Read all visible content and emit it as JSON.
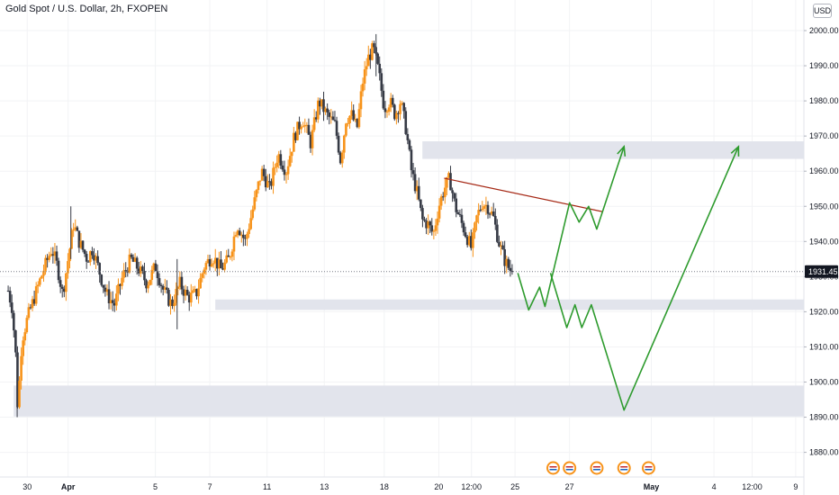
{
  "header": {
    "title": "Gold Spot / U.S. Dollar, 2h, FXOPEN",
    "currency": "USD"
  },
  "chart_data": {
    "type": "candlestick",
    "symbol": "Gold Spot / U.S. Dollar",
    "interval": "2h",
    "exchange": "FXOPEN",
    "currency": "USD",
    "last_price": 1931.45,
    "last_price_label": "1931.45",
    "ylim": [
      1875,
      2008
    ],
    "y_ticks": [
      {
        "label": "2000.00",
        "value": 2000
      },
      {
        "label": "1990.00",
        "value": 1990
      },
      {
        "label": "1980.00",
        "value": 1980
      },
      {
        "label": "1970.00",
        "value": 1970
      },
      {
        "label": "1960.00",
        "value": 1960
      },
      {
        "label": "1950.00",
        "value": 1950
      },
      {
        "label": "1940.00",
        "value": 1940
      },
      {
        "label": "1930.00",
        "value": 1930
      },
      {
        "label": "1920.00",
        "value": 1920
      },
      {
        "label": "1910.00",
        "value": 1910
      },
      {
        "label": "1900.00",
        "value": 1900
      },
      {
        "label": "1890.00",
        "value": 1890
      },
      {
        "label": "1880.00",
        "value": 1880
      }
    ],
    "x_ticks": [
      {
        "label": "30",
        "t": 0.7,
        "bold": false
      },
      {
        "label": "Apr",
        "t": 2.2,
        "bold": true
      },
      {
        "label": "5",
        "t": 5.4,
        "bold": false
      },
      {
        "label": "7",
        "t": 7.4,
        "bold": false
      },
      {
        "label": "11",
        "t": 9.5,
        "bold": false
      },
      {
        "label": "13",
        "t": 11.6,
        "bold": false
      },
      {
        "label": "18",
        "t": 13.8,
        "bold": false
      },
      {
        "label": "20",
        "t": 15.8,
        "bold": false
      },
      {
        "label": "12:00",
        "t": 17.0,
        "bold": false
      },
      {
        "label": "25",
        "t": 18.6,
        "bold": false
      },
      {
        "label": "27",
        "t": 20.6,
        "bold": false
      },
      {
        "label": "May",
        "t": 23.6,
        "bold": true
      },
      {
        "label": "4",
        "t": 25.9,
        "bold": false
      },
      {
        "label": "12:00",
        "t": 27.3,
        "bold": false
      },
      {
        "label": "9",
        "t": 28.9,
        "bold": false
      }
    ],
    "x_range": [
      -0.3,
      29.2
    ],
    "price_path": [
      [
        0.0,
        1926
      ],
      [
        0.15,
        1921
      ],
      [
        0.3,
        1905
      ],
      [
        0.35,
        1892
      ],
      [
        0.5,
        1912
      ],
      [
        0.7,
        1918
      ],
      [
        1.0,
        1925
      ],
      [
        1.3,
        1932
      ],
      [
        1.6,
        1938
      ],
      [
        1.8,
        1933
      ],
      [
        2.0,
        1925
      ],
      [
        2.2,
        1935
      ],
      [
        2.4,
        1945
      ],
      [
        2.6,
        1940
      ],
      [
        2.9,
        1935
      ],
      [
        3.1,
        1938
      ],
      [
        3.4,
        1930
      ],
      [
        3.6,
        1925
      ],
      [
        3.9,
        1922
      ],
      [
        4.2,
        1930
      ],
      [
        4.5,
        1935
      ],
      [
        4.8,
        1932
      ],
      [
        5.1,
        1928
      ],
      [
        5.4,
        1933
      ],
      [
        5.7,
        1926
      ],
      [
        6.0,
        1922
      ],
      [
        6.3,
        1928
      ],
      [
        6.6,
        1924
      ],
      [
        6.9,
        1925
      ],
      [
        7.2,
        1933
      ],
      [
        7.5,
        1936
      ],
      [
        7.8,
        1932
      ],
      [
        8.1,
        1935
      ],
      [
        8.4,
        1945
      ],
      [
        8.7,
        1940
      ],
      [
        9.0,
        1950
      ],
      [
        9.3,
        1960
      ],
      [
        9.6,
        1955
      ],
      [
        9.9,
        1965
      ],
      [
        10.2,
        1960
      ],
      [
        10.5,
        1970
      ],
      [
        10.8,
        1975
      ],
      [
        11.1,
        1968
      ],
      [
        11.4,
        1980
      ],
      [
        11.7,
        1976
      ],
      [
        12.0,
        1973
      ],
      [
        12.2,
        1963
      ],
      [
        12.4,
        1975
      ],
      [
        12.6,
        1976
      ],
      [
        12.8,
        1972
      ],
      [
        13.0,
        1985
      ],
      [
        13.2,
        1992
      ],
      [
        13.4,
        1995
      ],
      [
        13.6,
        1988
      ],
      [
        13.8,
        1978
      ],
      [
        14.0,
        1980
      ],
      [
        14.2,
        1976
      ],
      [
        14.4,
        1980
      ],
      [
        14.6,
        1972
      ],
      [
        14.8,
        1960
      ],
      [
        15.0,
        1954
      ],
      [
        15.2,
        1946
      ],
      [
        15.4,
        1945
      ],
      [
        15.6,
        1942
      ],
      [
        15.8,
        1950
      ],
      [
        16.0,
        1955
      ],
      [
        16.2,
        1958
      ],
      [
        16.4,
        1950
      ],
      [
        16.6,
        1946
      ],
      [
        16.8,
        1942
      ],
      [
        17.0,
        1938
      ],
      [
        17.2,
        1947
      ],
      [
        17.4,
        1951
      ],
      [
        17.6,
        1950
      ],
      [
        17.8,
        1947
      ],
      [
        18.0,
        1940
      ],
      [
        18.2,
        1935
      ],
      [
        18.4,
        1932
      ],
      [
        18.55,
        1931.45
      ]
    ],
    "support_zones": [
      {
        "name": "upper-resistance-zone",
        "low": 1963.5,
        "high": 1968.5,
        "t_start": 15.2
      },
      {
        "name": "middle-support-zone",
        "low": 1920.5,
        "high": 1923.5,
        "t_start": 7.6
      },
      {
        "name": "lower-support-zone",
        "low": 1890.2,
        "high": 1899.0,
        "t_start": 0.2
      }
    ],
    "trendline": {
      "points": [
        [
          16.0,
          1958
        ],
        [
          21.8,
          1948.5
        ]
      ],
      "color": "#a52714"
    },
    "projection_paths": [
      {
        "name": "bullish-scenario-path",
        "color": "#2e9b2e",
        "points": [
          [
            18.7,
            1931
          ],
          [
            19.1,
            1920.5
          ],
          [
            19.5,
            1927
          ],
          [
            19.7,
            1921.5
          ],
          [
            20.6,
            1951
          ],
          [
            20.95,
            1945.5
          ],
          [
            21.3,
            1950
          ],
          [
            21.6,
            1943.5
          ],
          [
            22.6,
            1967
          ]
        ]
      },
      {
        "name": "bearish-scenario-path",
        "color": "#2e9b2e",
        "points": [
          [
            19.9,
            1931
          ],
          [
            20.5,
            1915.5
          ],
          [
            20.8,
            1922
          ],
          [
            21.05,
            1915.5
          ],
          [
            21.4,
            1922
          ],
          [
            22.6,
            1892
          ],
          [
            26.8,
            1967
          ]
        ]
      }
    ],
    "colors": {
      "up": "#f7931a",
      "down": "#363a45",
      "zone": "#e0e3eb",
      "grid": "#f2f3f5",
      "last_price_line": "#787b86",
      "last_price_label_bg": "#131722",
      "projection": "#2e9b2e",
      "trendline": "#a52714"
    },
    "event_icons": {
      "t": [
        20.0,
        20.6,
        21.6,
        22.6,
        23.5
      ]
    }
  }
}
